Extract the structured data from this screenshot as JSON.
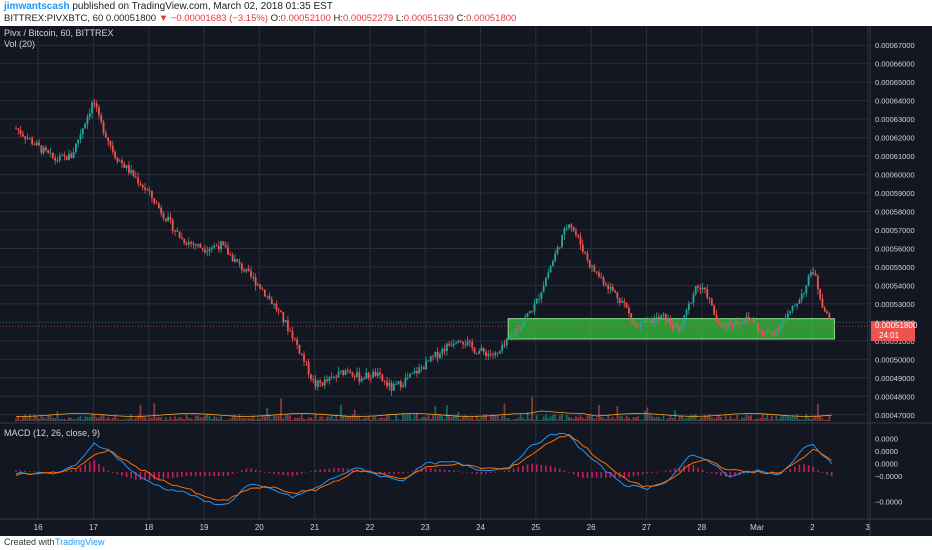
{
  "header": {
    "author": "jimwantscash",
    "published": "published on TradingView.com, March 02, 2018 01:35 EST",
    "symbol_line": "BITTREX:PIVXBTC, 60",
    "last_price": "0.00051800",
    "change": "▼ −0.00001683 (−3.15%)",
    "ohlc": {
      "o_label": "O:",
      "o": "0.00052100",
      "h_label": "H:",
      "h": "0.00052279",
      "l_label": "L:",
      "l": "0.00051639",
      "c_label": "C:",
      "c": "0.00051800"
    }
  },
  "legend": {
    "main": "Pivx / Bitcoin, 60, BITTREX",
    "vol": "Vol (20)",
    "macd": "MACD (12, 26, close, 9)"
  },
  "price_tag": {
    "price": "0.00051800",
    "countdown": "24:01"
  },
  "footer": {
    "created": "Created with",
    "brand": "TradingView"
  },
  "colors": {
    "background": "#131722",
    "up": "#26a69a",
    "down": "#ef5350",
    "zone": "#39c43e",
    "macd": "#2196f3",
    "signal": "#ff6d00",
    "hist": "#e91e63"
  },
  "chart_data": {
    "type": "candlestick",
    "x_ticks": [
      "16",
      "17",
      "18",
      "19",
      "20",
      "21",
      "22",
      "23",
      "24",
      "25",
      "26",
      "27",
      "28",
      "Mar",
      "2",
      "3"
    ],
    "y_ticks": [
      "0.00047000",
      "0.00048000",
      "0.00049000",
      "0.00050000",
      "0.00051000",
      "0.00052000",
      "0.00053000",
      "0.00054000",
      "0.00055000",
      "0.00056000",
      "0.00057000",
      "0.00058000",
      "0.00059000",
      "0.00060000",
      "0.00061000",
      "0.00062000",
      "0.00063000",
      "0.00064000",
      "0.00065000",
      "0.00066000",
      "0.00067000"
    ],
    "ylim": [
      0.000465,
      0.000675
    ],
    "current_price": 0.000518,
    "support_zone": [
      0.000511,
      0.000522
    ],
    "path_keypoints": [
      [
        15.6,
        0.000625
      ],
      [
        16.0,
        0.000615
      ],
      [
        16.3,
        0.000608
      ],
      [
        16.6,
        0.00061
      ],
      [
        16.8,
        0.000625
      ],
      [
        17.0,
        0.00064
      ],
      [
        17.1,
        0.00063
      ],
      [
        17.4,
        0.00061
      ],
      [
        17.8,
        0.000597
      ],
      [
        18.0,
        0.00059
      ],
      [
        18.3,
        0.000577
      ],
      [
        18.6,
        0.000565
      ],
      [
        19.0,
        0.00056
      ],
      [
        19.3,
        0.000562
      ],
      [
        19.6,
        0.000552
      ],
      [
        20.0,
        0.00054
      ],
      [
        20.3,
        0.000528
      ],
      [
        20.6,
        0.000513
      ],
      [
        20.8,
        0.0005
      ],
      [
        21.0,
        0.000486
      ],
      [
        21.3,
        0.000489
      ],
      [
        21.6,
        0.000495
      ],
      [
        21.8,
        0.00049
      ],
      [
        22.1,
        0.000492
      ],
      [
        22.4,
        0.000484
      ],
      [
        22.7,
        0.00049
      ],
      [
        23.0,
        0.000497
      ],
      [
        23.3,
        0.000505
      ],
      [
        23.6,
        0.000512
      ],
      [
        23.9,
        0.000505
      ],
      [
        24.3,
        0.000502
      ],
      [
        24.7,
        0.000518
      ],
      [
        25.0,
        0.00053
      ],
      [
        25.3,
        0.000553
      ],
      [
        25.6,
        0.000575
      ],
      [
        25.8,
        0.000563
      ],
      [
        26.0,
        0.00055
      ],
      [
        26.3,
        0.00054
      ],
      [
        26.6,
        0.00053
      ],
      [
        26.8,
        0.000517
      ],
      [
        27.0,
        0.00052
      ],
      [
        27.3,
        0.000523
      ],
      [
        27.6,
        0.000515
      ],
      [
        27.9,
        0.00054
      ],
      [
        28.1,
        0.000535
      ],
      [
        28.3,
        0.000518
      ],
      [
        28.6,
        0.00052
      ],
      [
        28.9,
        0.000522
      ],
      [
        29.1,
        0.000513
      ],
      [
        29.3,
        0.000515
      ],
      [
        29.6,
        0.000525
      ],
      [
        29.9,
        0.00054
      ],
      [
        30.0,
        0.00055
      ],
      [
        30.2,
        0.000528
      ],
      [
        30.35,
        0.000518
      ]
    ],
    "macd": {
      "ylim": [
        -5.5e-06,
        5.5e-06
      ],
      "y_ticks": [
        "0.0000",
        "0.0000",
        "0.0000",
        "−0.0000",
        "−0.0000"
      ],
      "macd_keypoints": [
        [
          15.6,
          -1e-07
        ],
        [
          16.3,
          -2e-07
        ],
        [
          16.7,
          8e-07
        ],
        [
          17.0,
          3.5e-06
        ],
        [
          17.3,
          2.5e-06
        ],
        [
          17.8,
          -5e-07
        ],
        [
          18.3,
          -2e-06
        ],
        [
          18.7,
          -2.5e-06
        ],
        [
          19.0,
          -3.5e-06
        ],
        [
          19.4,
          -4e-06
        ],
        [
          19.8,
          -1.5e-06
        ],
        [
          20.2,
          -2e-06
        ],
        [
          20.6,
          -3e-06
        ],
        [
          21.0,
          -2e-06
        ],
        [
          21.4,
          -5e-07
        ],
        [
          21.8,
          5e-07
        ],
        [
          22.2,
          -5e-07
        ],
        [
          22.6,
          -1e-06
        ],
        [
          23.0,
          1e-06
        ],
        [
          23.5,
          1.2e-06
        ],
        [
          24.0,
          2e-07
        ],
        [
          24.5,
          5e-07
        ],
        [
          24.9,
          3e-06
        ],
        [
          25.3,
          4.5e-06
        ],
        [
          25.6,
          4.5e-06
        ],
        [
          25.8,
          2.8e-06
        ],
        [
          26.2,
          5e-07
        ],
        [
          26.6,
          -1.5e-06
        ],
        [
          27.0,
          -2e-06
        ],
        [
          27.4,
          -1e-06
        ],
        [
          27.8,
          2e-06
        ],
        [
          28.1,
          1.5e-06
        ],
        [
          28.5,
          -5e-07
        ],
        [
          29.0,
          2e-07
        ],
        [
          29.4,
          -5e-07
        ],
        [
          29.8,
          2.5e-06
        ],
        [
          30.0,
          3.5e-06
        ],
        [
          30.2,
          2e-06
        ],
        [
          30.35,
          1e-06
        ]
      ],
      "signal_keypoints": [
        [
          15.6,
          -3e-07
        ],
        [
          16.3,
          -1e-07
        ],
        [
          16.7,
          5e-07
        ],
        [
          17.0,
          2e-06
        ],
        [
          17.3,
          2.5e-06
        ],
        [
          17.8,
          5e-07
        ],
        [
          18.3,
          -1.2e-06
        ],
        [
          18.7,
          -2e-06
        ],
        [
          19.0,
          -3e-06
        ],
        [
          19.4,
          -3.5e-06
        ],
        [
          19.8,
          -2e-06
        ],
        [
          20.2,
          -1.8e-06
        ],
        [
          20.6,
          -2.5e-06
        ],
        [
          21.0,
          -2.2e-06
        ],
        [
          21.4,
          -1e-06
        ],
        [
          21.8,
          2e-07
        ],
        [
          22.2,
          -2e-07
        ],
        [
          22.6,
          -8e-07
        ],
        [
          23.0,
          5e-07
        ],
        [
          23.5,
          1e-06
        ],
        [
          24.0,
          5e-07
        ],
        [
          24.5,
          3e-07
        ],
        [
          24.9,
          2e-06
        ],
        [
          25.3,
          3.8e-06
        ],
        [
          25.6,
          4.5e-06
        ],
        [
          25.8,
          3.5e-06
        ],
        [
          26.2,
          1.2e-06
        ],
        [
          26.6,
          -8e-07
        ],
        [
          27.0,
          -1.8e-06
        ],
        [
          27.4,
          -1.2e-06
        ],
        [
          27.8,
          1e-06
        ],
        [
          28.1,
          1.5e-06
        ],
        [
          28.5,
          2e-07
        ],
        [
          29.0,
          0.0
        ],
        [
          29.4,
          -2e-07
        ],
        [
          29.8,
          1.5e-06
        ],
        [
          30.0,
          2.8e-06
        ],
        [
          30.2,
          2.2e-06
        ],
        [
          30.35,
          1.5e-06
        ]
      ]
    }
  }
}
